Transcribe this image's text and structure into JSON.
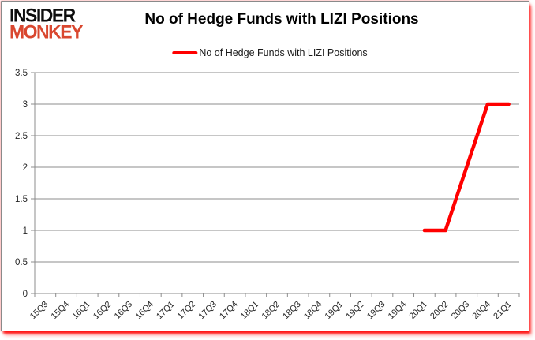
{
  "logo": {
    "line1": "INSIDER",
    "line2": "MONKEY"
  },
  "header": {
    "title": "No of Hedge Funds with LIZI Positions"
  },
  "legend": {
    "label": "No of Hedge Funds with LIZI Positions"
  },
  "colors": {
    "series_line": "#ff0000",
    "gridline": "#8c8c8c",
    "axis_line": "#8c8c8c",
    "axis_text": "#262626",
    "title_text": "#000000",
    "logo_primary": "#0d0d0d",
    "logo_accent": "#d9472f",
    "frame_glow": "#ff0000",
    "background": "#ffffff"
  },
  "chart_data": {
    "type": "line",
    "title": "No of Hedge Funds with LIZI Positions",
    "categories": [
      "15Q3",
      "15Q4",
      "16Q1",
      "16Q2",
      "16Q3",
      "16Q4",
      "17Q1",
      "17Q2",
      "17Q3",
      "17Q4",
      "18Q1",
      "18Q2",
      "18Q3",
      "18Q4",
      "19Q1",
      "19Q2",
      "19Q3",
      "19Q4",
      "20Q1",
      "20Q2",
      "20Q3",
      "20Q4",
      "21Q1"
    ],
    "series": [
      {
        "name": "No of Hedge Funds with LIZI Positions",
        "color": "#ff0000",
        "values": [
          null,
          null,
          null,
          null,
          null,
          null,
          null,
          null,
          null,
          null,
          null,
          null,
          null,
          null,
          null,
          null,
          null,
          null,
          1,
          1,
          2,
          3,
          3
        ]
      }
    ],
    "xlabel": "",
    "ylabel": "",
    "ylim": [
      0,
      3.5
    ],
    "yticks": [
      0,
      0.5,
      1,
      1.5,
      2,
      2.5,
      3,
      3.5
    ],
    "grid": true,
    "legend_position": "top",
    "x_label_rotation": -45
  }
}
